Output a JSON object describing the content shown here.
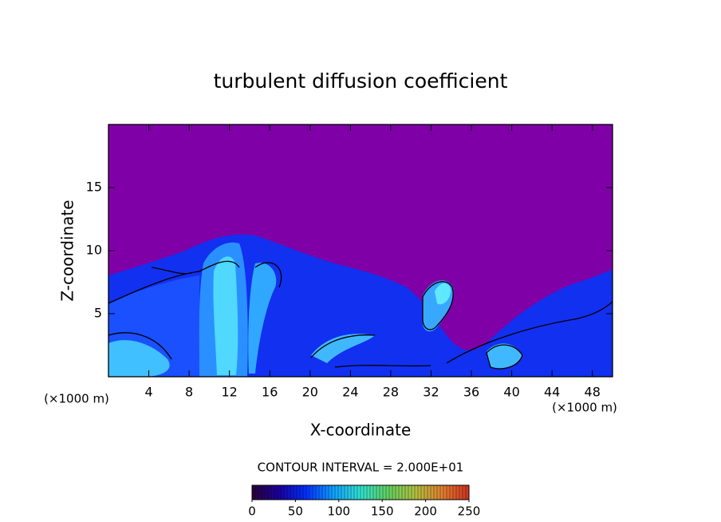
{
  "chart_data": {
    "type": "contour",
    "title": "turbulent diffusion coefficient",
    "x_label": "X-coordinate",
    "y_label": "Z-coordinate",
    "x_unit": "(×1000 m)",
    "y_unit": "(×1000 m)",
    "xlim": [
      0,
      50
    ],
    "xticks": [
      4,
      8,
      12,
      16,
      20,
      24,
      28,
      32,
      36,
      40,
      44,
      48
    ],
    "ylim": [
      0,
      20
    ],
    "yticks": [
      5,
      10,
      15
    ],
    "annotation": "CONTOUR INTERVAL = 2.000E+01",
    "colorbar": {
      "lim": [
        0,
        250
      ],
      "ticks": [
        0,
        50,
        100,
        150,
        200,
        250
      ],
      "colors": [
        "#2a0038",
        "#1a00a0",
        "#0030ff",
        "#10a0ff",
        "#30e0d0",
        "#60d060",
        "#b0c040",
        "#e08030",
        "#d03020"
      ]
    }
  }
}
